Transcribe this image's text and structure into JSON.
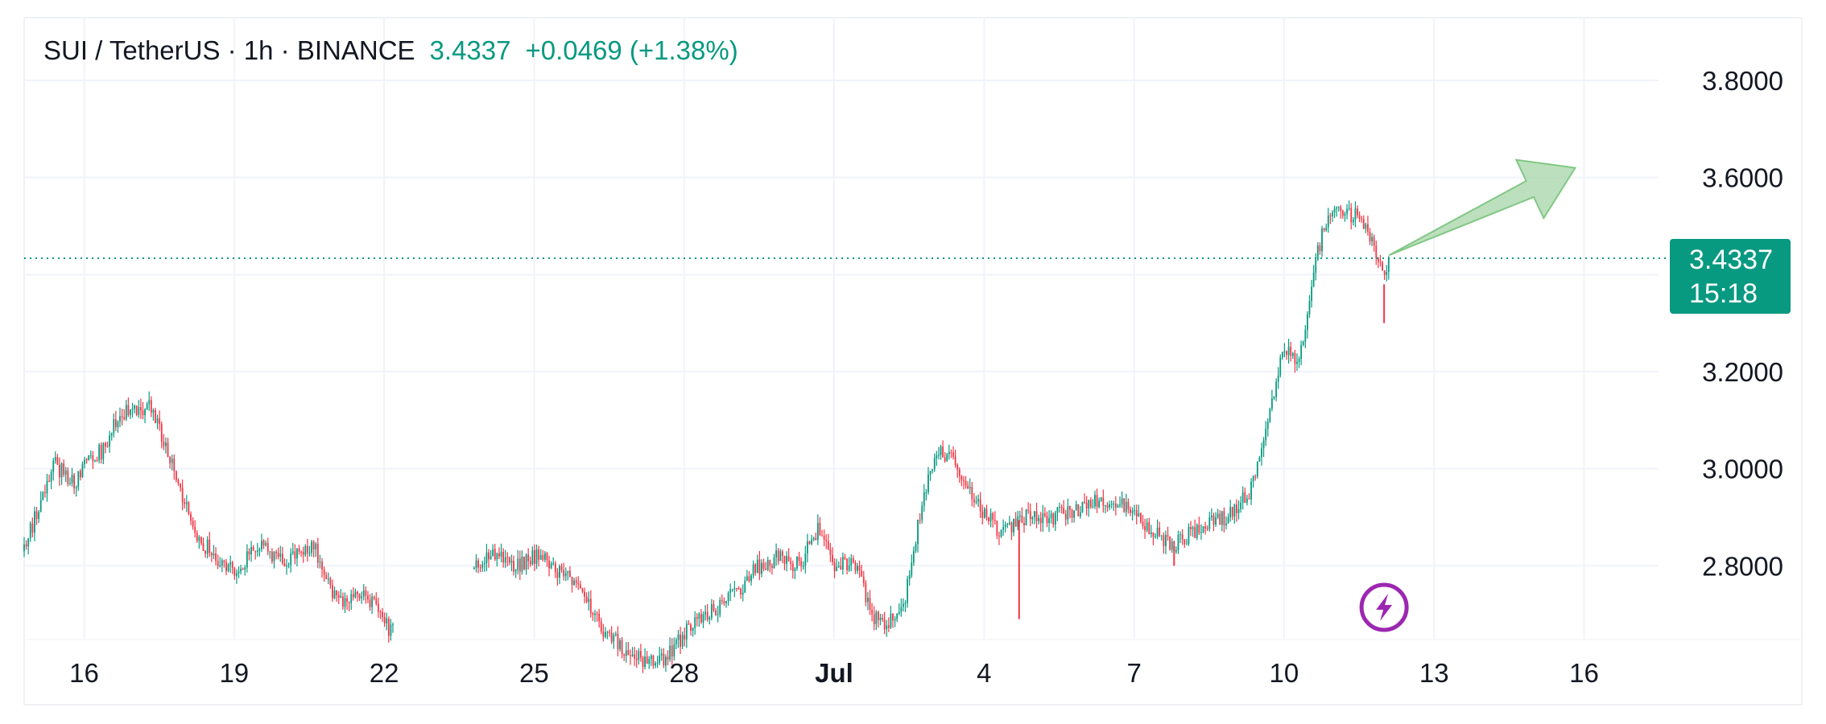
{
  "legend": {
    "symbol": "SUI / TetherUS · 1h · BINANCE",
    "price": "3.4337",
    "change": "+0.0469 (+1.38%)"
  },
  "price_tag": {
    "price": "3.4337",
    "countdown": "15:18"
  },
  "colors": {
    "up": "#089981",
    "down": "#f23645",
    "grid": "#f0f3fa",
    "last_price_line": "#089981",
    "arrow": "#a5d6a7",
    "bolt": "#9c27b0"
  },
  "icons": {
    "arrow": "up-right-arrow-icon",
    "event": "lightning-bolt-icon"
  },
  "chart_data": {
    "type": "candlestick",
    "title": "SUI / TetherUS · 1h · BINANCE",
    "interval": "1h",
    "ylim": [
      2.64,
      3.88
    ],
    "y_ticks": [
      "3.8000",
      "3.6000",
      "3.2000",
      "3.0000",
      "2.8000"
    ],
    "x_ticks": [
      "16",
      "19",
      "22",
      "25",
      "28",
      "Jul",
      "4",
      "7",
      "10",
      "13",
      "16"
    ],
    "x_tick_days": [
      16,
      19,
      22,
      25,
      28,
      31,
      34,
      37,
      40,
      43,
      46
    ],
    "xlim": [
      14.8,
      49.3
    ],
    "last_price": 3.4337,
    "gap_days": [
      22.2,
      23.8
    ],
    "path_days": [
      14.8,
      15.1,
      15.4,
      15.8,
      16.0,
      16.4,
      16.6,
      16.9,
      17.3,
      17.8,
      18.2,
      18.6,
      19.0,
      19.3,
      19.6,
      20.0,
      20.3,
      20.6,
      20.9,
      21.1,
      21.4,
      21.8,
      22.1,
      23.9,
      24.2,
      24.6,
      25.1,
      25.5,
      25.9,
      26.4,
      26.8,
      27.2,
      27.6,
      28.1,
      28.6,
      29.0,
      29.5,
      29.9,
      30.3,
      30.7,
      31.0,
      31.4,
      31.8,
      32.1,
      32.4,
      32.8,
      33.1,
      33.5,
      33.9,
      34.3,
      34.8,
      35.3,
      35.8,
      36.3,
      36.8,
      37.3,
      37.8,
      38.3,
      38.8,
      39.3,
      39.7,
      40.0,
      40.3,
      40.6,
      40.9,
      41.2,
      41.5,
      41.8,
      42.0,
      42.1
    ],
    "path_close": [
      2.83,
      2.93,
      3.01,
      2.97,
      3.01,
      3.04,
      3.1,
      3.12,
      3.13,
      3.0,
      2.87,
      2.82,
      2.79,
      2.82,
      2.84,
      2.8,
      2.83,
      2.84,
      2.76,
      2.72,
      2.74,
      2.73,
      2.67,
      2.8,
      2.82,
      2.8,
      2.82,
      2.79,
      2.75,
      2.66,
      2.63,
      2.6,
      2.61,
      2.67,
      2.71,
      2.74,
      2.8,
      2.82,
      2.8,
      2.88,
      2.8,
      2.81,
      2.69,
      2.68,
      2.72,
      2.95,
      3.04,
      3.0,
      2.92,
      2.87,
      2.9,
      2.9,
      2.91,
      2.94,
      2.92,
      2.88,
      2.84,
      2.88,
      2.9,
      2.95,
      3.1,
      3.26,
      3.21,
      3.42,
      3.53,
      3.52,
      3.53,
      3.46,
      3.38,
      3.43
    ],
    "wicks": [
      {
        "day": 34.7,
        "low": 2.69
      },
      {
        "day": 37.8,
        "low": 2.8
      },
      {
        "day": 42.0,
        "low": 3.3
      }
    ],
    "projection_arrow": {
      "from_day": 42.1,
      "from_price": 3.44,
      "to_day": 45.5,
      "to_price": 3.63
    }
  }
}
